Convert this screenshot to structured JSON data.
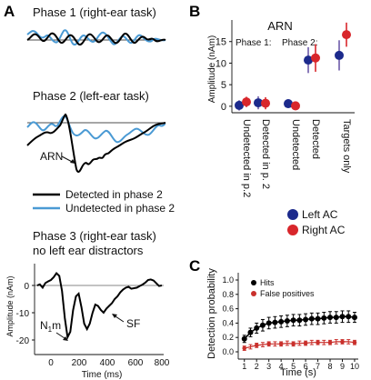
{
  "panels": {
    "a": "A",
    "b": "B",
    "c": "C"
  },
  "panel_a": {
    "phase1_title": "Phase 1 (right-ear task)",
    "phase2_title": "Phase 2 (left-ear task)",
    "arn_label": "ARN",
    "legend_detected": "Detected in phase 2",
    "legend_undetected": "Undetected in phase 2",
    "phase3_title_line1": "Phase 3 (right-ear task)",
    "phase3_title_line2": "no left ear distractors",
    "n1m_label": "N",
    "n1m_sub": "1",
    "n1m_suffix": "m",
    "sf_label": "SF",
    "ylabel": "Amplitude (nAm)",
    "xlabel": "Time (ms)",
    "yticks": [
      "0",
      "-10",
      "-20"
    ],
    "xticks": [
      "0",
      "200",
      "400",
      "600",
      "800"
    ]
  },
  "colors": {
    "detected": "#000000",
    "undetected": "#4a9ad4",
    "left_ac": "#1c2a8c",
    "right_ac": "#d8262b",
    "hits": "#000000",
    "false_pos": "#c9302c",
    "errorbar_blue": "#6d5aa8",
    "errorbar_red": "#d8262b"
  },
  "chart_data": [
    {
      "type": "line",
      "title": "Phase 3 (right-ear task)",
      "subtitle": "no left ear distractors",
      "xlabel": "Time (ms)",
      "ylabel": "Amplitude (nAm)",
      "xlim": [
        -100,
        800
      ],
      "ylim": [
        -25,
        7
      ],
      "series": [
        {
          "x": [
            -100,
            -80,
            -60,
            -40,
            -20,
            0,
            20,
            40,
            60,
            80,
            100,
            120,
            140,
            160,
            180,
            200,
            220,
            240,
            260,
            280,
            300,
            320,
            340,
            360,
            380,
            400,
            420,
            440,
            460,
            480,
            500,
            520,
            540,
            560,
            580,
            600,
            620,
            640,
            660,
            680,
            700,
            720,
            740,
            760,
            780,
            800
          ],
          "values": [
            0,
            0.4,
            -0.8,
            0.9,
            1.5,
            2,
            3,
            4.5,
            3.5,
            -2,
            -12,
            -19,
            -17,
            -9,
            -4,
            -3,
            -8,
            -14,
            -16,
            -14,
            -10,
            -7,
            -7.5,
            -9,
            -10,
            -8.5,
            -7.5,
            -6.5,
            -5,
            -4,
            -2.5,
            -1.5,
            -0.8,
            -0.5,
            -1.2,
            -1,
            -0.8,
            -0.2,
            0.3,
            1,
            2,
            2.2,
            1.8,
            0.8,
            -0.2,
            0
          ]
        }
      ],
      "annotations": [
        "N1m",
        "SF"
      ]
    },
    {
      "type": "scatter",
      "title": "ARN",
      "ylabel": "Amplitude (nAm)",
      "ylim": [
        -1.5,
        20
      ],
      "yticks": [
        0,
        5,
        10,
        15
      ],
      "group_labels": [
        "Phase 1:",
        "Phase 2:"
      ],
      "categories": [
        "Undetected in p.2",
        "Detected in p. 2",
        "Undetected",
        "Detected",
        "Targets only"
      ],
      "series": [
        {
          "name": "Left AC",
          "values": [
            0.2,
            0.8,
            0.6,
            10.7,
            11.8
          ],
          "errors": [
            1.2,
            1.5,
            1.0,
            3.0,
            3.5
          ]
        },
        {
          "name": "Right AC",
          "values": [
            1.0,
            0.7,
            0.1,
            11.2,
            16.6
          ],
          "errors": [
            1.2,
            1.4,
            1.0,
            3.2,
            2.8
          ]
        }
      ],
      "legend": "bottom-right"
    },
    {
      "type": "line",
      "xlabel": "Time (s)",
      "ylabel": "Detection probability",
      "xlim": [
        0.5,
        10.3
      ],
      "ylim": [
        0,
        1
      ],
      "yticks": [
        0,
        0.2,
        0.4,
        0.6,
        0.8,
        1.0
      ],
      "ytick_labels": [
        "0.0",
        "0.2",
        "0.4",
        "0.6",
        "0.8",
        "1.0"
      ],
      "x": [
        1,
        1.5,
        2,
        2.5,
        3,
        3.5,
        4,
        4.5,
        5,
        5.5,
        6,
        6.5,
        7,
        7.5,
        8,
        8.5,
        9,
        9.5,
        10
      ],
      "series": [
        {
          "name": "Hits",
          "values": [
            0.18,
            0.27,
            0.33,
            0.37,
            0.4,
            0.41,
            0.42,
            0.43,
            0.44,
            0.44,
            0.45,
            0.46,
            0.46,
            0.47,
            0.48,
            0.48,
            0.49,
            0.49,
            0.48
          ],
          "errors": [
            0.05,
            0.06,
            0.07,
            0.08,
            0.08,
            0.08,
            0.08,
            0.08,
            0.08,
            0.08,
            0.08,
            0.08,
            0.08,
            0.08,
            0.08,
            0.08,
            0.08,
            0.08,
            0.07
          ]
        },
        {
          "name": "False positives",
          "values": [
            0.05,
            0.07,
            0.09,
            0.1,
            0.11,
            0.11,
            0.11,
            0.12,
            0.11,
            0.12,
            0.12,
            0.13,
            0.13,
            0.13,
            0.13,
            0.14,
            0.14,
            0.14,
            0.13
          ],
          "errors": [
            0.03,
            0.03,
            0.03,
            0.03,
            0.03,
            0.03,
            0.03,
            0.03,
            0.03,
            0.03,
            0.03,
            0.03,
            0.03,
            0.03,
            0.03,
            0.03,
            0.03,
            0.03,
            0.03
          ]
        }
      ],
      "legend": "top-left"
    }
  ],
  "panel_b": {
    "title": "ARN",
    "group1": "Phase 1:",
    "group2": "Phase 2:",
    "legend_left": "Left AC",
    "legend_right": "Right AC"
  },
  "panel_c": {
    "legend_hits": "Hits",
    "legend_fp": "False positives",
    "xticks": [
      "1",
      "2",
      "3",
      "4",
      "5",
      "6",
      "7",
      "8",
      "9",
      "10"
    ]
  }
}
